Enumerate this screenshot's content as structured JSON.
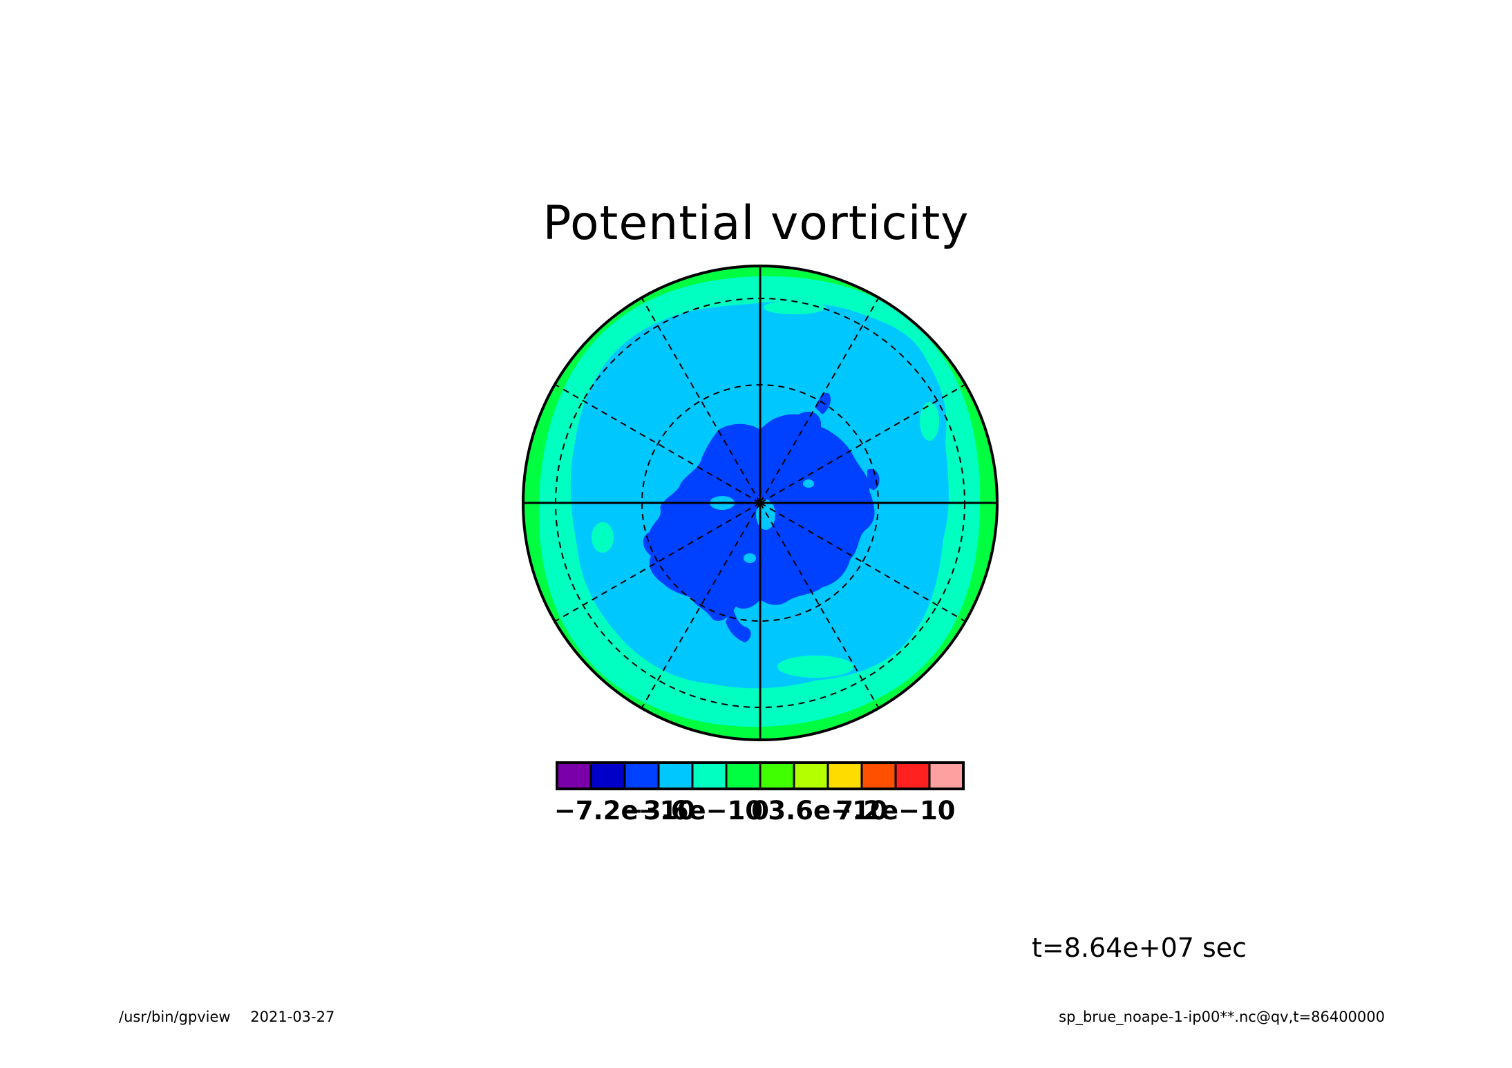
{
  "title": "Potential vorticity",
  "time_label": "t=8.64e+07 sec",
  "footer": {
    "program": "/usr/bin/gpview",
    "date": "2021-03-27",
    "source": "sp_brue_noape-1-ip00**.nc@qv,t=86400000"
  },
  "chart_data": {
    "type": "heatmap",
    "projection": "polar stereographic",
    "title": "Potential vorticity",
    "colorbar": {
      "min": -1.08e-09,
      "max": 1.08e-09,
      "step": 1.8e-10,
      "colors": [
        "#7a00aa",
        "#0000c8",
        "#0040ff",
        "#00c8ff",
        "#00ffc0",
        "#00ff40",
        "#40ff00",
        "#b4ff00",
        "#ffdc00",
        "#ff5000",
        "#ff2020",
        "#ffa0a0"
      ],
      "tick_values": [
        -7.2e-10,
        -3.6e-10,
        0,
        3.6e-10,
        7.2e-10
      ],
      "tick_labels": [
        "−7.2e−10",
        "−3.6e−10",
        "0",
        "3.6e−10",
        "7.2e−10"
      ]
    },
    "field_bands": [
      {
        "color": "#00ff40",
        "description_range": [
          0,
          1.8e-10
        ],
        "region": "outer rim"
      },
      {
        "color": "#00ffc0",
        "description_range": [
          -1.8e-10,
          0
        ],
        "region": "outer ring"
      },
      {
        "color": "#00c8ff",
        "description_range": [
          -3.6e-10,
          -1.8e-10
        ],
        "region": "mid latitudes"
      },
      {
        "color": "#0040ff",
        "description_range": [
          -5.4e-10,
          -3.6e-10
        ],
        "region": "polar center"
      }
    ],
    "grid": true
  }
}
